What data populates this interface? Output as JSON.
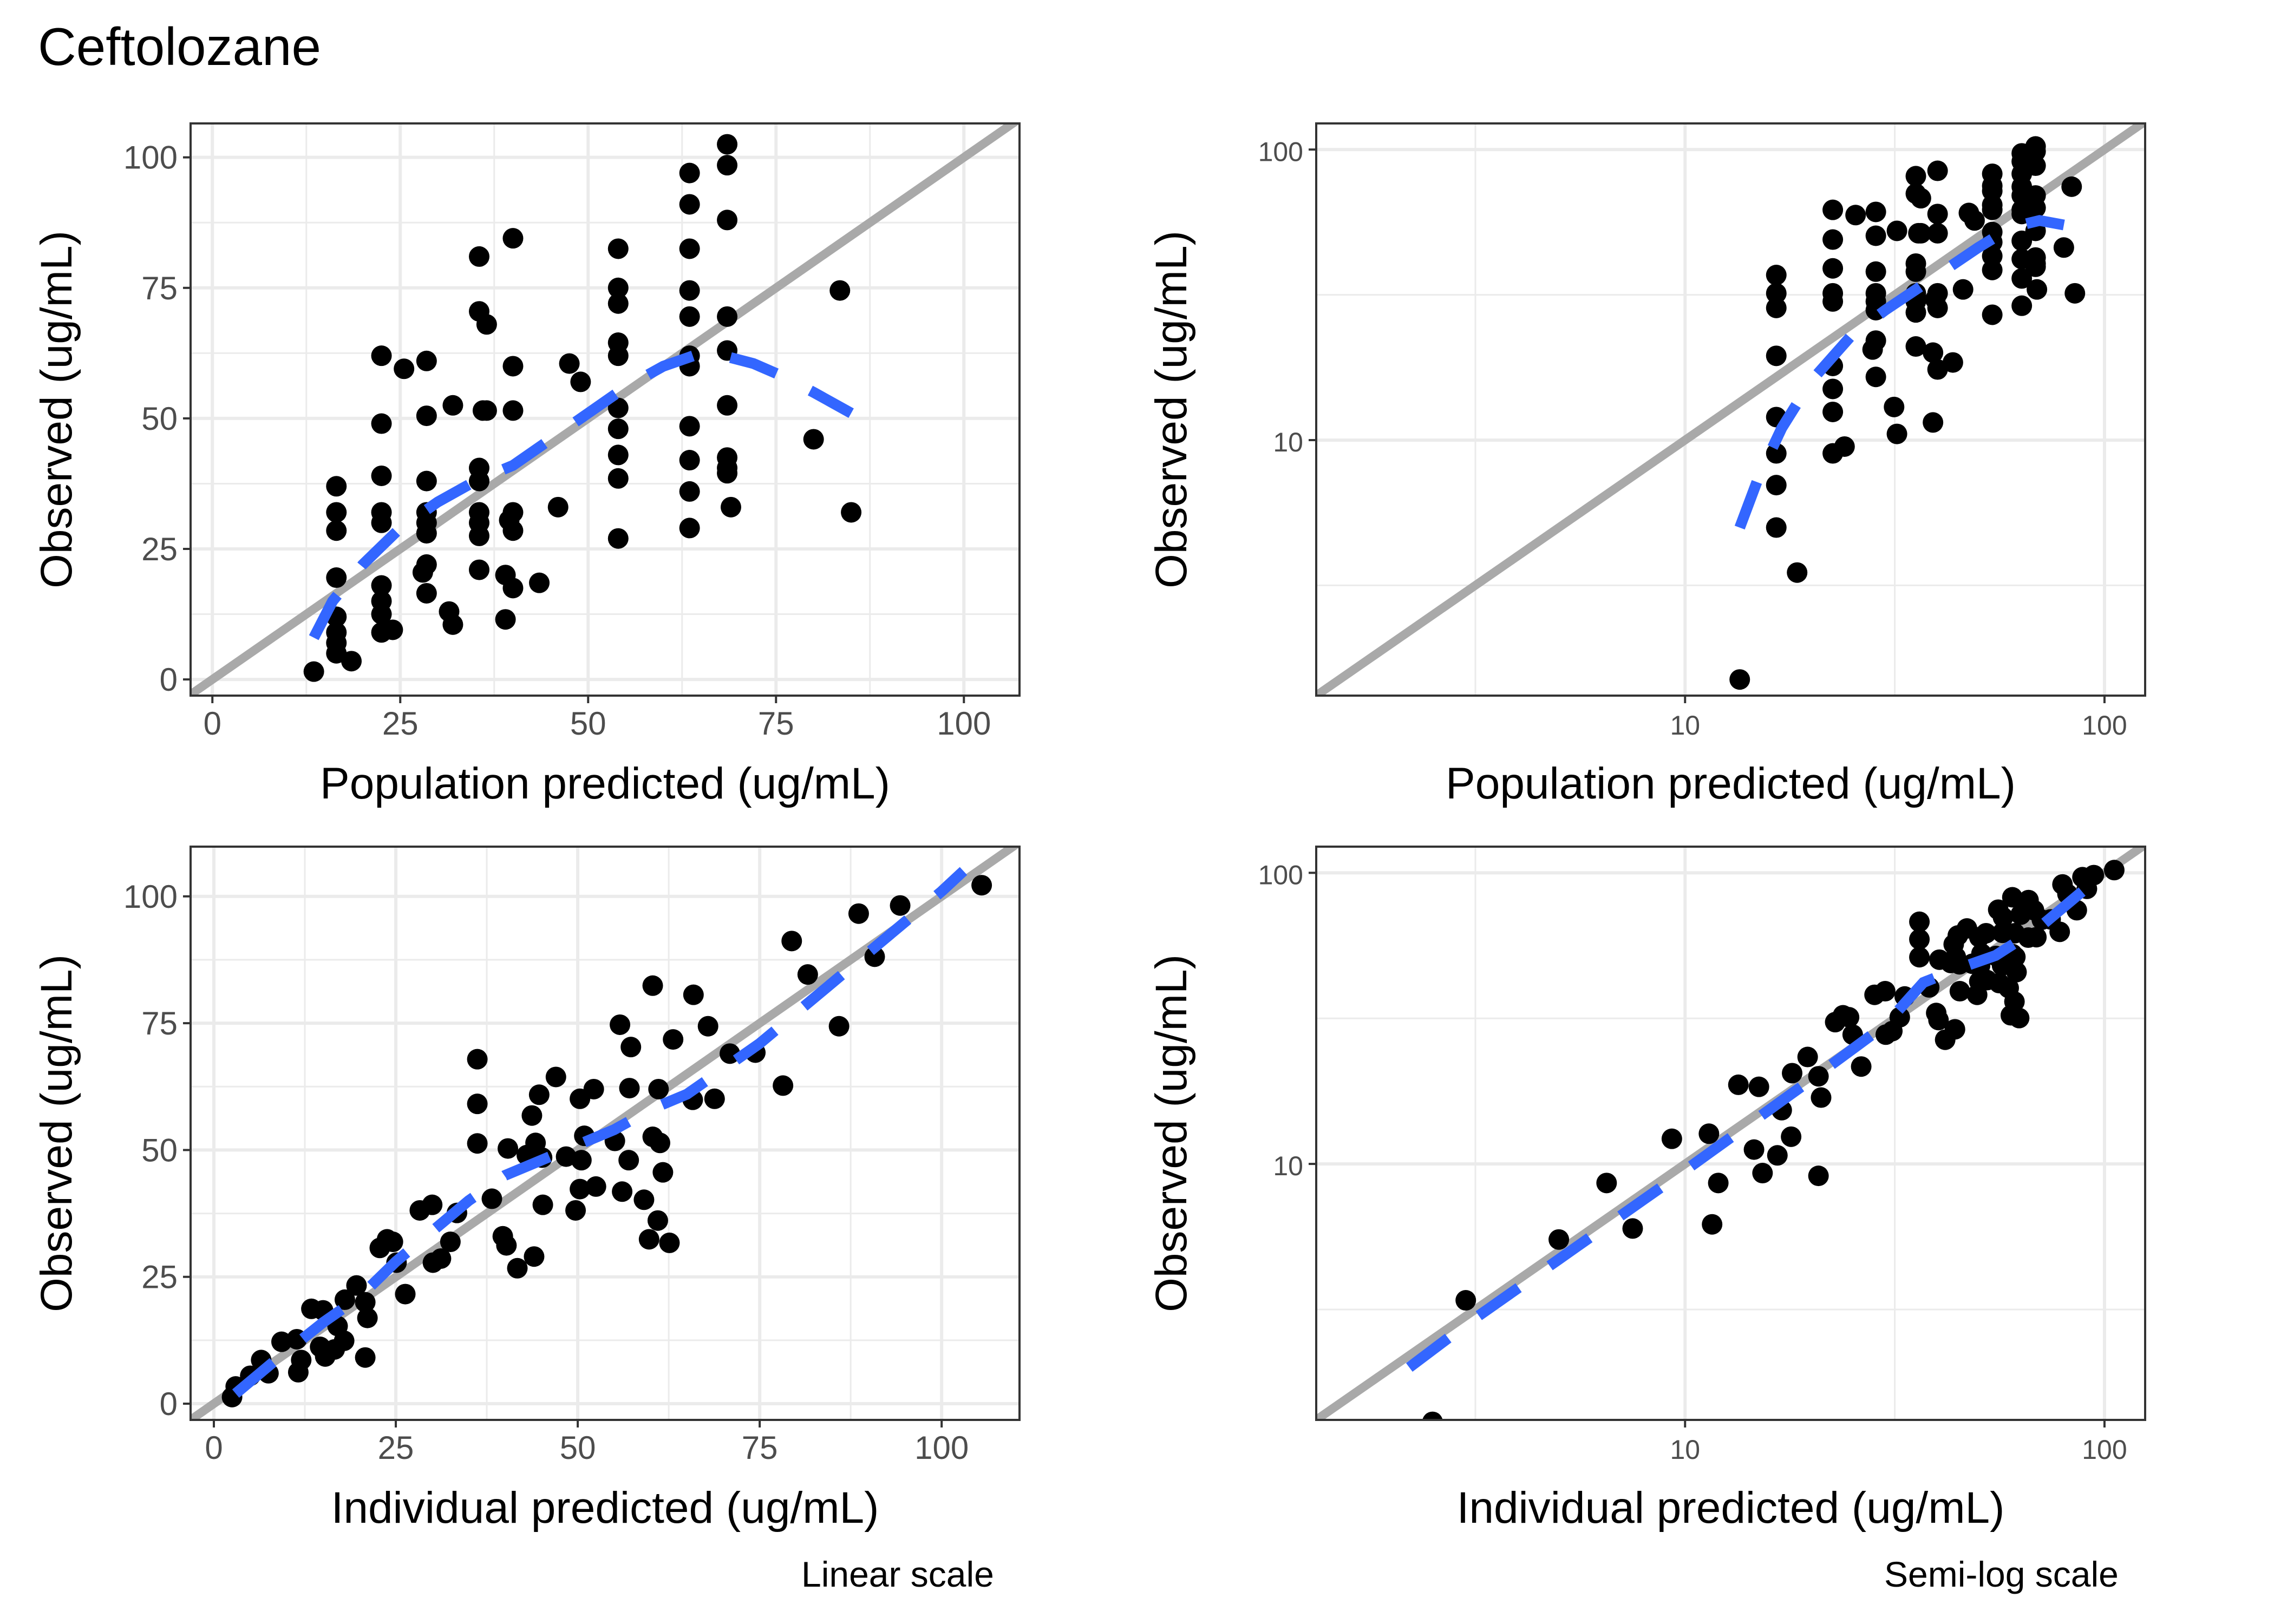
{
  "title": "Ceftolozane",
  "captions": {
    "linear": "Linear scale",
    "semilog": "Semi-log scale"
  },
  "colors": {
    "points": "#000000",
    "identity_line": "#A9A9A9",
    "smooth": "#3366FF",
    "grid": "#EBEBEB",
    "border": "#333333"
  },
  "chart_data": [
    {
      "type": "scatter",
      "panel": "top-left",
      "xlabel": "Population predicted (ug/mL)",
      "ylabel": "Observed (ug/mL)",
      "scale": "linear",
      "xlim": [
        -2.9,
        107.4
      ],
      "ylim": [
        -3.1,
        106.5
      ],
      "xticks": [
        0,
        25,
        50,
        75,
        100
      ],
      "yticks": [
        0,
        25,
        50,
        75,
        100
      ],
      "xtick_labels": [
        "0",
        "25",
        "50",
        "75",
        "100"
      ],
      "ytick_labels": [
        "0",
        "25",
        "50",
        "75",
        "100"
      ],
      "points": "pred",
      "smooth": [
        [
          13.5,
          8
        ],
        [
          16,
          15
        ],
        [
          20,
          22
        ],
        [
          25,
          29
        ],
        [
          30,
          34
        ],
        [
          35,
          38
        ],
        [
          40,
          41
        ],
        [
          45,
          46
        ],
        [
          50,
          51
        ],
        [
          55,
          56
        ],
        [
          60,
          60
        ],
        [
          64,
          62
        ],
        [
          68,
          62
        ],
        [
          72,
          60.5
        ],
        [
          76,
          58
        ],
        [
          80,
          55
        ],
        [
          85,
          51
        ]
      ]
    },
    {
      "type": "scatter",
      "panel": "top-right",
      "xlabel": "Population predicted (ug/mL)",
      "ylabel": "Observed (ug/mL)",
      "scale": "log",
      "xlim": [
        1.32,
        125
      ],
      "ylim": [
        1.32,
        123
      ],
      "xticks": [
        10,
        100
      ],
      "yticks": [
        10,
        100
      ],
      "xtick_labels": [
        "10",
        "100"
      ],
      "ytick_labels": [
        "10",
        "100"
      ],
      "points": "pred",
      "smooth": [
        [
          13.5,
          5
        ],
        [
          15,
          7.5
        ],
        [
          17,
          11
        ],
        [
          20,
          16
        ],
        [
          25,
          23
        ],
        [
          30,
          28
        ],
        [
          40,
          37
        ],
        [
          50,
          46
        ],
        [
          60,
          54
        ],
        [
          70,
          57
        ],
        [
          80,
          55
        ]
      ]
    },
    {
      "type": "scatter",
      "panel": "bottom-left",
      "xlabel": "Individual predicted (ug/mL)",
      "ylabel": "Observed (ug/mL)",
      "scale": "linear",
      "xlim": [
        -3.2,
        110.7
      ],
      "ylim": [
        -3.2,
        109.8
      ],
      "xticks": [
        0,
        25,
        50,
        75,
        100
      ],
      "yticks": [
        0,
        25,
        50,
        75,
        100
      ],
      "xtick_labels": [
        "0",
        "25",
        "50",
        "75",
        "100"
      ],
      "ytick_labels": [
        "0",
        "25",
        "50",
        "75",
        "100"
      ],
      "points": "ipred",
      "smooth": [
        [
          3,
          2
        ],
        [
          8,
          8
        ],
        [
          15,
          16
        ],
        [
          20,
          21
        ],
        [
          25,
          28
        ],
        [
          30,
          34
        ],
        [
          35,
          40
        ],
        [
          40,
          45
        ],
        [
          45,
          48
        ],
        [
          50,
          51
        ],
        [
          55,
          54
        ],
        [
          60,
          58
        ],
        [
          65,
          61
        ],
        [
          70,
          66
        ],
        [
          75,
          71
        ],
        [
          80,
          77
        ],
        [
          85,
          83
        ],
        [
          90,
          89
        ],
        [
          95,
          95
        ],
        [
          100,
          101
        ],
        [
          103,
          105
        ]
      ]
    },
    {
      "type": "scatter",
      "panel": "bottom-right",
      "xlabel": "Individual predicted (ug/mL)",
      "ylabel": "Observed (ug/mL)",
      "scale": "log",
      "xlim": [
        1.32,
        125
      ],
      "ylim": [
        1.32,
        123
      ],
      "xticks": [
        10,
        100
      ],
      "yticks": [
        10,
        100
      ],
      "xtick_labels": [
        "10",
        "100"
      ],
      "ytick_labels": [
        "10",
        "100"
      ],
      "points": "ipred",
      "smooth": [
        [
          2.2,
          2
        ],
        [
          3,
          2.8
        ],
        [
          5,
          4.7
        ],
        [
          10,
          9.5
        ],
        [
          20,
          19.5
        ],
        [
          30,
          30
        ],
        [
          37,
          42
        ],
        [
          45,
          47
        ],
        [
          55,
          52
        ],
        [
          70,
          65
        ],
        [
          100,
          100
        ]
      ]
    }
  ],
  "series": {
    "pred": [
      [
        13.5,
        1.5
      ],
      [
        16.5,
        37
      ],
      [
        16.5,
        32
      ],
      [
        16.5,
        28.5
      ],
      [
        16.5,
        19.5
      ],
      [
        16.5,
        12
      ],
      [
        16.5,
        9
      ],
      [
        16.5,
        7
      ],
      [
        16.5,
        5
      ],
      [
        18.5,
        3.5
      ],
      [
        22.5,
        62
      ],
      [
        22.5,
        49
      ],
      [
        22.5,
        39
      ],
      [
        22.5,
        32
      ],
      [
        22.5,
        30
      ],
      [
        22.5,
        18
      ],
      [
        22.5,
        15
      ],
      [
        22.5,
        12.5
      ],
      [
        22.5,
        9
      ],
      [
        24,
        9.5
      ],
      [
        25.5,
        59.5
      ],
      [
        28.5,
        61
      ],
      [
        28.5,
        50.5
      ],
      [
        28.5,
        38
      ],
      [
        28.5,
        32
      ],
      [
        28.5,
        30
      ],
      [
        28.5,
        28
      ],
      [
        28.5,
        22
      ],
      [
        28,
        20.5
      ],
      [
        28.5,
        16.5
      ],
      [
        31.5,
        13
      ],
      [
        32,
        10.5
      ],
      [
        32,
        52.5
      ],
      [
        35.5,
        81
      ],
      [
        35.5,
        70.5
      ],
      [
        36.5,
        68
      ],
      [
        36,
        51.5
      ],
      [
        36.5,
        51.5
      ],
      [
        35.5,
        40.5
      ],
      [
        35.5,
        38
      ],
      [
        35.5,
        32
      ],
      [
        35.5,
        30
      ],
      [
        35.5,
        27.5
      ],
      [
        35.5,
        21
      ],
      [
        40,
        84.5
      ],
      [
        40,
        60
      ],
      [
        40,
        51.5
      ],
      [
        40,
        32
      ],
      [
        39.5,
        30.5
      ],
      [
        40,
        28.5
      ],
      [
        39,
        20
      ],
      [
        40,
        17.5
      ],
      [
        39,
        11.5
      ],
      [
        43.5,
        18.5
      ],
      [
        46,
        33
      ],
      [
        47.5,
        60.5
      ],
      [
        49,
        57
      ],
      [
        54,
        82.5
      ],
      [
        54,
        75
      ],
      [
        54,
        72
      ],
      [
        54,
        64.5
      ],
      [
        54,
        62
      ],
      [
        54,
        52
      ],
      [
        54,
        48
      ],
      [
        54,
        43
      ],
      [
        54,
        38.5
      ],
      [
        54,
        27
      ],
      [
        63.5,
        97
      ],
      [
        63.5,
        91
      ],
      [
        63.5,
        82.5
      ],
      [
        63.5,
        74.5
      ],
      [
        63.5,
        69.5
      ],
      [
        63.5,
        62
      ],
      [
        63.5,
        60
      ],
      [
        63.5,
        48.5
      ],
      [
        63.5,
        42
      ],
      [
        63.5,
        36
      ],
      [
        63.5,
        29
      ],
      [
        68.5,
        102.5
      ],
      [
        68.5,
        98.5
      ],
      [
        68.5,
        88
      ],
      [
        68.5,
        69.5
      ],
      [
        68.5,
        63
      ],
      [
        68.5,
        52.5
      ],
      [
        68.5,
        42.5
      ],
      [
        68.5,
        40.5
      ],
      [
        68.5,
        39.5
      ],
      [
        69,
        33
      ],
      [
        80,
        46
      ],
      [
        83.5,
        74.5
      ],
      [
        85,
        32
      ]
    ],
    "ipred": [
      [
        2.5,
        1.3
      ],
      [
        3,
        3.4
      ],
      [
        5,
        5.5
      ],
      [
        6.5,
        8.6
      ],
      [
        7.5,
        6
      ],
      [
        9.3,
        12.2
      ],
      [
        11.4,
        12.7
      ],
      [
        11.6,
        6.2
      ],
      [
        12,
        8.6
      ],
      [
        13.4,
        18.7
      ],
      [
        15,
        18.4
      ],
      [
        14.6,
        11.2
      ],
      [
        15.3,
        9.3
      ],
      [
        16.6,
        10.7
      ],
      [
        17,
        15.3
      ],
      [
        17.9,
        12.4
      ],
      [
        18,
        20.5
      ],
      [
        19.6,
        23.3
      ],
      [
        20.8,
        9.1
      ],
      [
        21.1,
        16.9
      ],
      [
        20.8,
        20
      ],
      [
        22.8,
        30.7
      ],
      [
        23.8,
        32.4
      ],
      [
        24.6,
        31.9
      ],
      [
        25.1,
        27.8
      ],
      [
        26.3,
        21.6
      ],
      [
        28.3,
        38.1
      ],
      [
        30,
        39.2
      ],
      [
        30.1,
        27.8
      ],
      [
        31.2,
        28.6
      ],
      [
        32.5,
        31.9
      ],
      [
        33.4,
        37.6
      ],
      [
        36.2,
        67.9
      ],
      [
        36.2,
        59.1
      ],
      [
        36.2,
        51.3
      ],
      [
        38.2,
        40.4
      ],
      [
        39.7,
        33
      ],
      [
        40.2,
        31.2
      ],
      [
        41.7,
        26.7
      ],
      [
        40.4,
        50.3
      ],
      [
        43,
        49
      ],
      [
        43.7,
        56.8
      ],
      [
        44,
        29
      ],
      [
        44.2,
        51.4
      ],
      [
        44.7,
        60.9
      ],
      [
        45.1,
        48.5
      ],
      [
        45.2,
        39.2
      ],
      [
        47,
        64.4
      ],
      [
        48.4,
        48.7
      ],
      [
        49.7,
        38.1
      ],
      [
        50.3,
        60.1
      ],
      [
        50.3,
        42.3
      ],
      [
        50.5,
        48
      ],
      [
        50.9,
        52.8
      ],
      [
        52.2,
        62
      ],
      [
        52.5,
        42.8
      ],
      [
        55.1,
        51.8
      ],
      [
        55.8,
        74.7
      ],
      [
        56.1,
        41.8
      ],
      [
        57,
        48
      ],
      [
        57.3,
        70.3
      ],
      [
        57.1,
        62.2
      ],
      [
        59.1,
        40.2
      ],
      [
        59.8,
        32.4
      ],
      [
        60.3,
        82.4
      ],
      [
        60.3,
        52.6
      ],
      [
        61,
        36.1
      ],
      [
        61.1,
        62
      ],
      [
        61.3,
        51.4
      ],
      [
        61.7,
        45.6
      ],
      [
        62.6,
        31.7
      ],
      [
        63.1,
        71.8
      ],
      [
        65.8,
        59.9
      ],
      [
        65.9,
        80.6
      ],
      [
        67.9,
        74.4
      ],
      [
        68.8,
        60.1
      ],
      [
        70.9,
        69
      ],
      [
        74.4,
        69.2
      ],
      [
        78.2,
        62.7
      ],
      [
        79.4,
        91.2
      ],
      [
        81.6,
        84.6
      ],
      [
        85.9,
        74.4
      ],
      [
        88.6,
        96.6
      ],
      [
        90.8,
        88.1
      ],
      [
        94.3,
        98.2
      ],
      [
        105.5,
        102.2
      ]
    ]
  }
}
